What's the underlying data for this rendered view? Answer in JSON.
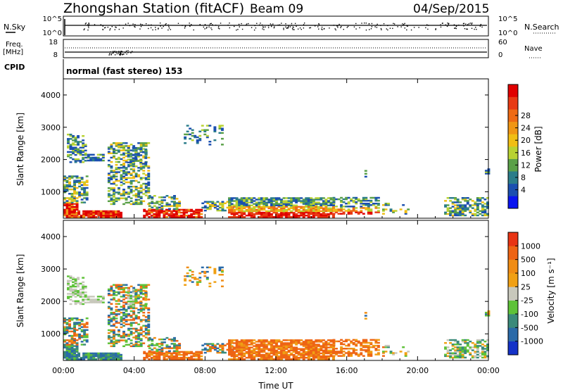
{
  "header": {
    "station": "Zhongshan Station (fitACF)",
    "beam": "Beam 09",
    "date": "04/Sep/2015"
  },
  "status_panels": {
    "nsky": {
      "label": "N.Sky",
      "tick_top": "10^5",
      "tick_bottom": "10^0"
    },
    "nsearch": {
      "label": "N.Search",
      "tick_top": "10^5",
      "tick_bottom": "10^0"
    },
    "freq": {
      "label_line1": "Freq.",
      "label_line2": "[MHz]",
      "tick_top": "18",
      "tick_bottom": "8"
    },
    "nave": {
      "label": "Nave",
      "tick_top": "60",
      "tick_bottom": "0"
    },
    "cpid": {
      "label": "CPID",
      "value": "normal (fast stereo) 153"
    }
  },
  "chart_data": [
    {
      "type": "heatmap",
      "name": "power",
      "xlabel": "",
      "ylabel": "Slant Range [km]",
      "x_ticks": [
        "00:00",
        "04:00",
        "08:00",
        "12:00",
        "16:00",
        "20:00",
        "00:00"
      ],
      "y_ticks": [
        1000,
        2000,
        3000,
        4000
      ],
      "ylim": [
        180,
        4500
      ],
      "xlim_hours": [
        0,
        24
      ],
      "colorbar": {
        "label": "Power [dB]",
        "tick_labels": [
          "4",
          "8",
          "12",
          "16",
          "20",
          "24",
          "28"
        ],
        "colors": [
          "#0a14f0",
          "#1b4fb0",
          "#2b7d8a",
          "#5aa048",
          "#b8d232",
          "#f0be14",
          "#f09614",
          "#ee6a14",
          "#e83a14",
          "#e00000"
        ]
      }
    },
    {
      "type": "heatmap",
      "name": "velocity",
      "xlabel": "Time UT",
      "ylabel": "Slant Range [km]",
      "x_ticks": [
        "00:00",
        "04:00",
        "08:00",
        "12:00",
        "16:00",
        "20:00",
        "00:00"
      ],
      "y_ticks": [
        1000,
        2000,
        3000,
        4000
      ],
      "ylim": [
        180,
        4500
      ],
      "xlim_hours": [
        0,
        24
      ],
      "colorbar": {
        "label": "Velocity [m s⁻¹]",
        "tick_labels": [
          "1000",
          "500",
          "100",
          "25",
          "-25",
          "-100",
          "-500",
          "-1000"
        ],
        "colors": [
          "#1432c8",
          "#2a6aa8",
          "#3a8a7a",
          "#5ec238",
          "#c8c8bc",
          "#f0a014",
          "#f08c14",
          "#ee6414",
          "#e83414"
        ]
      }
    }
  ]
}
